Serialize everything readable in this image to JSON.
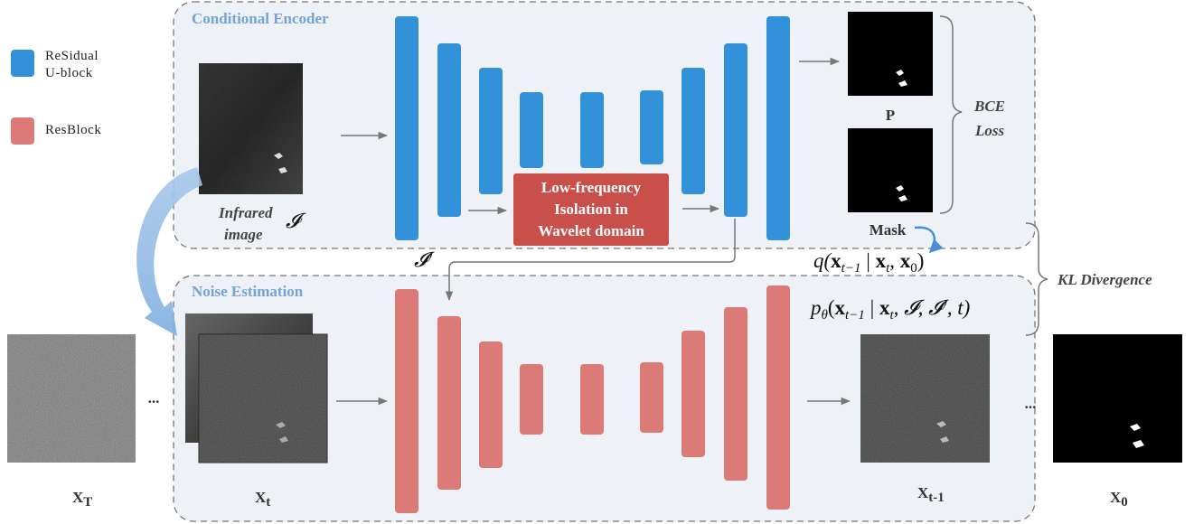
{
  "legend": [
    {
      "lines": [
        "ReSidual",
        "U-block"
      ]
    },
    {
      "lines": [
        "ResBlock"
      ]
    }
  ],
  "encoder": {
    "title": "Conditional Encoder",
    "input_lines": [
      "Infrared",
      "image"
    ],
    "input_symbol": "𝓘",
    "wavelet_box": [
      "Low-frequency",
      "Isolation in",
      "Wavelet domain"
    ],
    "feature_symbol": "𝓘′",
    "prediction_label": "P",
    "mask_label": "Mask",
    "loss": [
      "BCE",
      "Loss"
    ]
  },
  "noise": {
    "title": "Noise Estimation"
  },
  "kl_label": "KL Divergence",
  "q_formula": [
    "q(",
    "x",
    "t−1",
    " | ",
    "x",
    "t",
    ", ",
    "x",
    "0",
    ")"
  ],
  "p_formula": [
    "p",
    "θ",
    "(",
    "x",
    "t−1",
    " | ",
    "x",
    "t",
    ", 𝓘, 𝓘′, t)"
  ],
  "states": [
    {
      "base": "X",
      "sub": "T"
    },
    {
      "base": "X",
      "sub": "t"
    },
    {
      "base": "X",
      "sub": "t-1"
    },
    {
      "base": "X",
      "sub": "0"
    }
  ],
  "ellipsis": [
    "...",
    "..."
  ]
}
